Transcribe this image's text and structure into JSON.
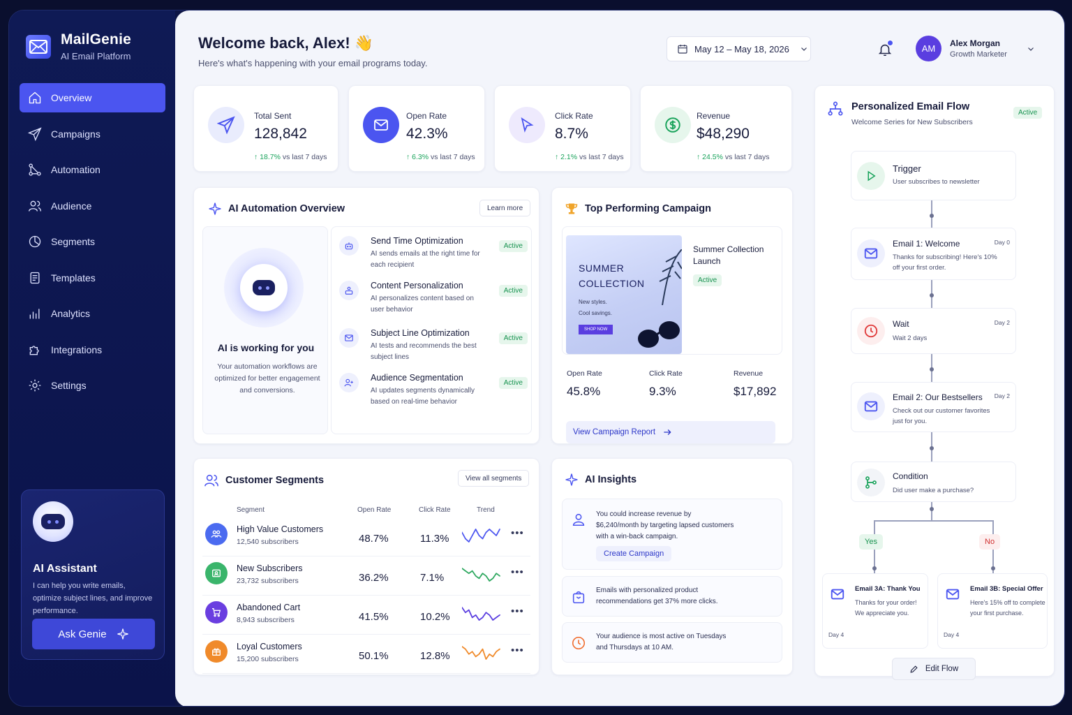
{
  "app": {
    "name": "MailGenie",
    "tagline": "AI Email Platform"
  },
  "nav": [
    {
      "label": "Overview",
      "icon": "home-icon",
      "active": true
    },
    {
      "label": "Campaigns",
      "icon": "paper-plane-icon"
    },
    {
      "label": "Automation",
      "icon": "workflow-icon"
    },
    {
      "label": "Audience",
      "icon": "users-icon"
    },
    {
      "label": "Segments",
      "icon": "pie-chart-icon"
    },
    {
      "label": "Templates",
      "icon": "document-icon"
    },
    {
      "label": "Analytics",
      "icon": "bar-chart-icon"
    },
    {
      "label": "Integrations",
      "icon": "puzzle-icon"
    },
    {
      "label": "Settings",
      "icon": "gear-icon"
    }
  ],
  "assistant": {
    "title": "AI Assistant",
    "text": "I can help you write emails, optimize subject lines, and improve performance.",
    "button": "Ask Genie"
  },
  "header": {
    "welcome": "Welcome back, Alex! 👋",
    "subtitle": "Here's what's happening with your email programs today.",
    "date_range": "May 12 – May 18, 2026",
    "user_initials": "AM",
    "user_name": "Alex Morgan",
    "user_role": "Growth Marketer"
  },
  "stats": [
    {
      "label": "Total Sent",
      "value": "128,842",
      "delta": "18.7%",
      "delta_note": "vs last 7 days"
    },
    {
      "label": "Open Rate",
      "value": "42.3%",
      "delta": "6.3%",
      "delta_note": "vs last 7 days"
    },
    {
      "label": "Click Rate",
      "value": "8.7%",
      "delta": "2.1%",
      "delta_note": "vs last 7 days"
    },
    {
      "label": "Revenue",
      "value": "$48,290",
      "delta": "24.5%",
      "delta_note": "vs last 7 days"
    }
  ],
  "automation": {
    "title": "AI Automation Overview",
    "learn_more": "Learn more",
    "left_title": "AI is working for you",
    "left_text": "Your automation workflows are optimized for better engagement and conversions.",
    "items": [
      {
        "title": "Send Time Optimization",
        "desc": "AI sends emails at the right time for each recipient",
        "status": "Active"
      },
      {
        "title": "Content Personalization",
        "desc": "AI personalizes content based on user behavior",
        "status": "Active"
      },
      {
        "title": "Subject Line Optimization",
        "desc": "AI tests and recommends the best subject lines",
        "status": "Active"
      },
      {
        "title": "Audience Segmentation",
        "desc": "AI updates segments dynamically based on real-time behavior",
        "status": "Active"
      }
    ]
  },
  "top_campaign": {
    "title": "Top Performing Campaign",
    "image_line1": "SUMMER",
    "image_line2": "COLLECTION",
    "image_text1": "New styles.",
    "image_text2": "Cool savings.",
    "image_cta": "SHOP NOW",
    "name": "Summer Collection Launch",
    "status": "Active",
    "metrics": [
      {
        "label": "Open Rate",
        "value": "45.8%"
      },
      {
        "label": "Click Rate",
        "value": "9.3%"
      },
      {
        "label": "Revenue",
        "value": "$17,892"
      }
    ],
    "report_link": "View Campaign Report"
  },
  "segments": {
    "title": "Customer Segments",
    "view_all": "View all segments",
    "headers": {
      "segment": "Segment",
      "open": "Open Rate",
      "click": "Click Rate",
      "trend": "Trend"
    },
    "rows": [
      {
        "name": "High Value Customers",
        "subscribers": "12,540 subscribers",
        "open": "48.7%",
        "click": "11.3%",
        "color": "#4b6bf0",
        "trend_color": "#4b55f0",
        "trend": [
          6,
          4,
          3,
          5,
          7,
          5,
          4,
          6,
          7,
          6,
          5,
          7
        ],
        "icon": "group-icon"
      },
      {
        "name": "New Subscribers",
        "subscribers": "23,732 subscribers",
        "open": "36.2%",
        "click": "7.1%",
        "color": "#3ab56b",
        "trend_color": "#2fa860",
        "trend": [
          8,
          7,
          6,
          7,
          5,
          4,
          6,
          5,
          3,
          4,
          6,
          5
        ],
        "icon": "id-card-icon"
      },
      {
        "name": "Abandoned Cart",
        "subscribers": "8,943 subscribers",
        "open": "41.5%",
        "click": "10.2%",
        "color": "#6a3ee0",
        "trend_color": "#5a3ee0",
        "trend": [
          8,
          6,
          7,
          4,
          5,
          3,
          4,
          6,
          5,
          3,
          4,
          5
        ],
        "icon": "cart-icon"
      },
      {
        "name": "Loyal Customers",
        "subscribers": "15,200 subscribers",
        "open": "50.1%",
        "click": "12.8%",
        "color": "#f08a2a",
        "trend_color": "#f08a2a",
        "trend": [
          8,
          7,
          5,
          6,
          4,
          5,
          7,
          3,
          5,
          4,
          6,
          7
        ],
        "icon": "gift-icon"
      }
    ]
  },
  "insights": {
    "title": "AI Insights",
    "items": [
      {
        "text": "You could increase revenue by $6,240/month by targeting lapsed customers with a win-back campaign.",
        "button": "Create Campaign",
        "icon": "user-icon"
      },
      {
        "text": "Emails with personalized product recommendations get 37% more clicks.",
        "icon": "shopping-bag-icon"
      },
      {
        "text": "Your audience is most active on Tuesdays and Thursdays at 10 AM.",
        "icon": "clock-icon"
      }
    ]
  },
  "flow": {
    "title": "Personalized Email Flow",
    "subtitle": "Welcome Series for New Subscribers",
    "status": "Active",
    "nodes": [
      {
        "title": "Trigger",
        "desc": "User subscribes to newsletter",
        "day": ""
      },
      {
        "title": "Email 1: Welcome",
        "desc": "Thanks for subscribing! Here's 10% off your first order.",
        "day": "Day 0"
      },
      {
        "title": "Wait",
        "desc": "Wait 2 days",
        "day": "Day 2"
      },
      {
        "title": "Email 2: Our Bestsellers",
        "desc": "Check out our customer favorites just for you.",
        "day": "Day 2"
      },
      {
        "title": "Condition",
        "desc": "Did user make a purchase?",
        "day": ""
      }
    ],
    "yes_label": "Yes",
    "no_label": "No",
    "branches": [
      {
        "title": "Email 3A: Thank You",
        "desc": "Thanks for your order! We appreciate you.",
        "day": "Day 4"
      },
      {
        "title": "Email 3B: Special Offer",
        "desc": "Here's 15% off to complete your first purchase.",
        "day": "Day 4"
      }
    ],
    "edit": "Edit Flow"
  }
}
